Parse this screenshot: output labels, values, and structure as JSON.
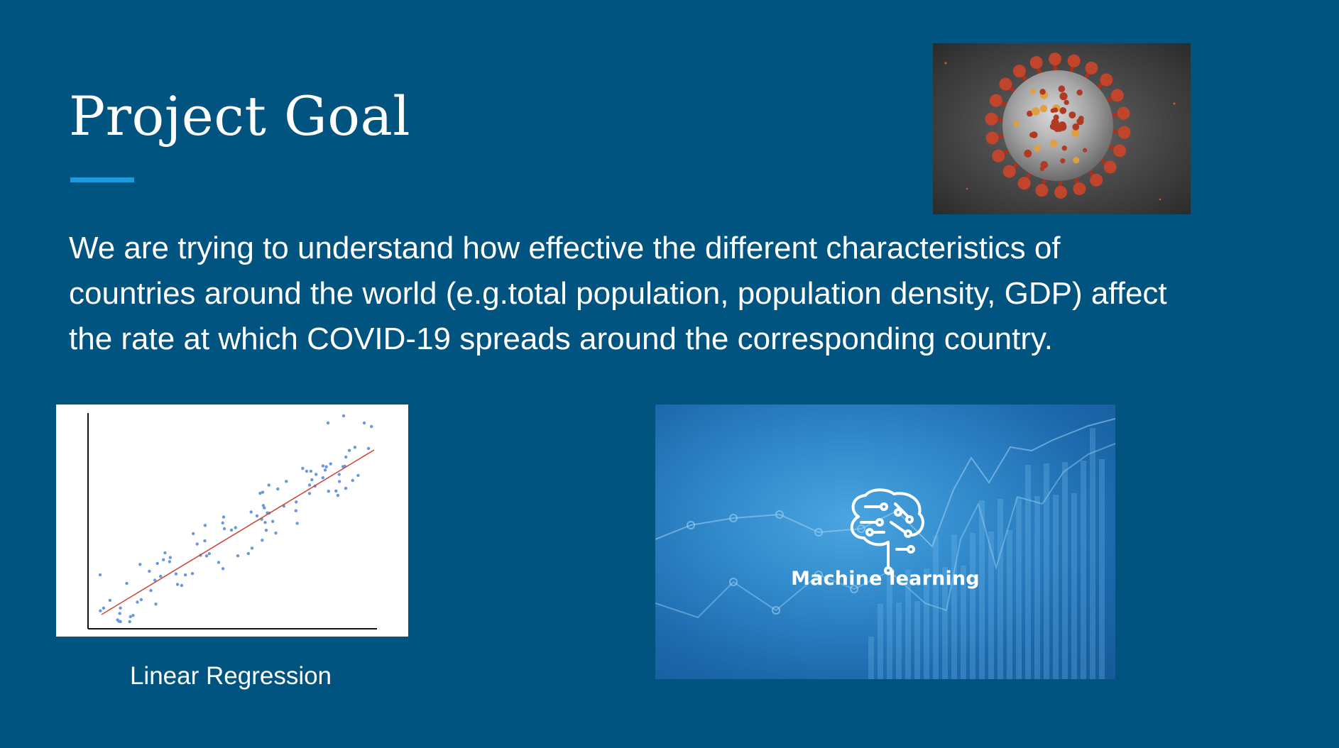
{
  "slide": {
    "title": "Project Goal",
    "body_lines": [
      "We are trying to understand how effective the different characteristics of",
      "countries around the world (e.g.total population, population density, GDP) affect",
      "the rate at which COVID-19 spreads around the corresponding country."
    ]
  },
  "images": {
    "virus": {
      "icon": "coronavirus-illustration"
    },
    "regression": {
      "icon": "scatter-plot-with-fit-line",
      "caption": "Linear Regression",
      "point_color": "#6a97de",
      "line_color": "#cc4a3a"
    },
    "machine_learning": {
      "icon": "brain-circuit-icon",
      "caption": "Machine learning"
    }
  },
  "colors": {
    "background": "#01547f",
    "accent": "#1e9be0",
    "text": "#ffffff"
  }
}
